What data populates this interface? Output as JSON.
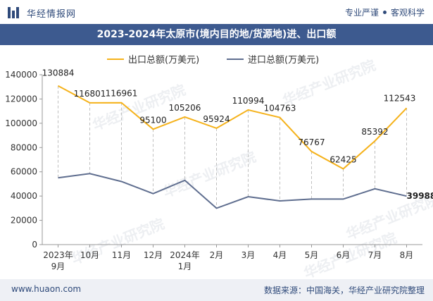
{
  "header": {
    "logo_text": "华经情报网",
    "tagline_left": "专业严谨",
    "tagline_right": "客观科学"
  },
  "footer": {
    "website": "www.huaon.com",
    "source": "数据来源：中国海关，华经产业研究院整理"
  },
  "watermark": "华经产业研究院",
  "colors": {
    "export": "#f5b21b",
    "import": "#5f6e8f",
    "title_bg": "#3d5a8f",
    "brand": "#2f4a7a"
  },
  "chart_data": {
    "type": "line",
    "title": "2023-2024年太原市(境内目的地/货源地)进、出口额",
    "categories": [
      [
        "2023年",
        "9月"
      ],
      [
        "10月"
      ],
      [
        "11月"
      ],
      [
        "12月"
      ],
      [
        "2024年",
        "1月"
      ],
      [
        "2月"
      ],
      [
        "3月"
      ],
      [
        "4月"
      ],
      [
        "5月"
      ],
      [
        "6月"
      ],
      [
        "7月"
      ],
      [
        "8月"
      ]
    ],
    "series": [
      {
        "name": "出口总额(万美元)",
        "values": [
          130884,
          116801,
          116961,
          95100,
          105206,
          95924,
          110994,
          104763,
          76767,
          62425,
          85392,
          112543
        ],
        "labels": [
          "130884",
          "116801",
          "116961",
          "95100",
          "105206",
          "95924",
          "110994",
          "104763",
          "76767",
          "62425",
          "85392",
          "112543"
        ]
      },
      {
        "name": "进口总额(万美元)",
        "values": [
          55000,
          58500,
          52000,
          42000,
          53000,
          30000,
          39500,
          36000,
          37500,
          37500,
          46000,
          39988
        ],
        "labels": [
          "",
          "",
          "",
          "",
          "",
          "",
          "",
          "",
          "",
          "",
          "",
          "39988"
        ]
      }
    ],
    "yticks": [
      "0",
      "20000",
      "40000",
      "60000",
      "80000",
      "100000",
      "120000",
      "140000"
    ],
    "ylim": [
      0,
      140000
    ],
    "legend_position": "top",
    "grid": false
  }
}
